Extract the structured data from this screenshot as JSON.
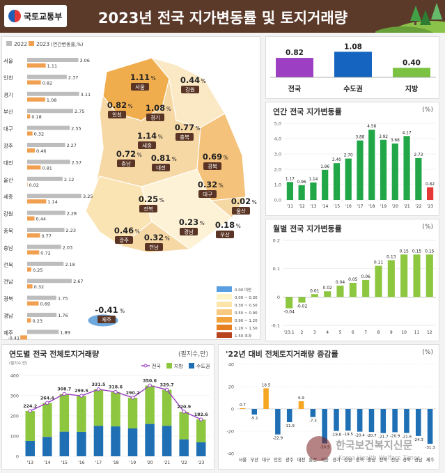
{
  "header": {
    "ministry": "국토교통부",
    "title": "2023년 전국 지가변동률 및 토지거래량"
  },
  "colors": {
    "header_bg": "#5b3a2a",
    "gray_2022": "#bdbdbd",
    "orange_2023": "#f0a050",
    "green": "#22a748",
    "red": "#e53935",
    "purple": "#9c3fc2",
    "blue": "#1565c0",
    "light_green": "#7cc242"
  },
  "legend_years": {
    "y2022": "2022",
    "y2023": "2023",
    "unit": "(연간변동률,%)"
  },
  "map": {
    "regions": [
      {
        "value": "1.11",
        "name": "서울"
      },
      {
        "value": "0.82",
        "name": "인천"
      },
      {
        "value": "1.08",
        "name": "경기"
      },
      {
        "value": "0.44",
        "name": "강원"
      },
      {
        "value": "1.14",
        "name": "세종"
      },
      {
        "value": "0.77",
        "name": "충북"
      },
      {
        "value": "0.72",
        "name": "충남"
      },
      {
        "value": "0.81",
        "name": "대전"
      },
      {
        "value": "0.69",
        "name": "경북"
      },
      {
        "value": "0.32",
        "name": "대구"
      },
      {
        "value": "0.02",
        "name": "울산"
      },
      {
        "value": "0.25",
        "name": "전북"
      },
      {
        "value": "0.23",
        "name": "경남"
      },
      {
        "value": "0.18",
        "name": "부산"
      },
      {
        "value": "0.46",
        "name": "광주"
      },
      {
        "value": "0.32",
        "name": "전남"
      },
      {
        "value": "-0.41",
        "name": "제주"
      }
    ],
    "legend": [
      {
        "label": "0.00 미만",
        "color": "#5aa0e0"
      },
      {
        "label": "0.00 ~ 0.30",
        "color": "#fff3c8"
      },
      {
        "label": "0.30 ~ 0.50",
        "color": "#fde4a8"
      },
      {
        "label": "0.50 ~ 0.90",
        "color": "#f8c97e"
      },
      {
        "label": "0.90 ~ 1.20",
        "color": "#f2a33c"
      },
      {
        "label": "1.20 ~ 1.50",
        "color": "#e67e22"
      },
      {
        "label": "1.50 초과",
        "color": "#b8431f"
      }
    ]
  },
  "chart_data": [
    {
      "type": "bar",
      "categories": [
        "서울",
        "인천",
        "경기",
        "부산",
        "대구",
        "광주",
        "대전",
        "울산",
        "세종",
        "강원",
        "충북",
        "충남",
        "전북",
        "전남",
        "경북",
        "경남",
        "제주"
      ],
      "series": [
        {
          "name": "2022",
          "values": [
            3.06,
            2.37,
            3.11,
            2.75,
            2.55,
            2.27,
            2.57,
            2.12,
            3.25,
            2.28,
            2.23,
            2.03,
            2.18,
            2.67,
            1.75,
            1.76,
            1.89
          ]
        },
        {
          "name": "2023",
          "values": [
            1.11,
            0.82,
            1.08,
            0.18,
            0.32,
            0.46,
            0.81,
            0.02,
            1.14,
            0.44,
            0.77,
            0.72,
            0.25,
            0.32,
            0.69,
            0.23,
            -0.41
          ]
        }
      ]
    },
    {
      "type": "bar",
      "categories": [
        "전국",
        "수도권",
        "지방"
      ],
      "values": [
        0.82,
        1.08,
        0.4
      ]
    },
    {
      "type": "bar",
      "title": "연간 전국 지가변동률",
      "unit": "(%)",
      "categories": [
        "'11",
        "'12",
        "'13",
        "'14",
        "'15",
        "'16",
        "'17",
        "'18",
        "'19",
        "'20",
        "'21",
        "'22",
        "'23"
      ],
      "values": [
        1.17,
        0.96,
        1.14,
        1.96,
        2.4,
        2.7,
        3.88,
        4.58,
        3.92,
        3.68,
        4.17,
        2.73,
        0.82
      ],
      "ylim": [
        0,
        5.0
      ],
      "yticks": [
        "0.0",
        "1.0",
        "2.0",
        "3.0",
        "4.0",
        "5.0"
      ]
    },
    {
      "type": "bar",
      "title": "월별 전국 지가변동률",
      "unit": "(%)",
      "categories": [
        "'23.1",
        "2",
        "3",
        "4",
        "5",
        "6",
        "7",
        "8",
        "9",
        "10",
        "11",
        "12"
      ],
      "values": [
        -0.04,
        -0.02,
        0.01,
        0.02,
        0.04,
        0.05,
        0.06,
        0.11,
        0.13,
        0.15,
        0.15,
        0.15
      ],
      "ylim": [
        -0.1,
        0.2
      ],
      "yticks": [
        "-0.1",
        "0",
        "0.1",
        "0.2"
      ]
    },
    {
      "type": "bar",
      "title": "연도별 전국 전체토지거래량",
      "unit": "(필지수,만)",
      "y_unit_label": "(필지수,만)",
      "categories": [
        "'13",
        "'14",
        "'15",
        "'16",
        "'17",
        "'18",
        "'19",
        "'20",
        "'21",
        "'22",
        "'23"
      ],
      "series": [
        {
          "name": "전국",
          "values": [
            224.2,
            264.4,
            308.7,
            299.5,
            331.5,
            318.6,
            290.2,
            350.6,
            329.7,
            220.9,
            182.6
          ]
        },
        {
          "name": "지방",
          "values": [
            148,
            168,
            186,
            178,
            180,
            170,
            152,
            190,
            178,
            136,
            113
          ]
        },
        {
          "name": "수도권",
          "values": [
            76,
            96,
            122,
            121,
            151,
            148,
            138,
            160,
            151,
            84,
            69
          ]
        }
      ],
      "ylim": [
        0,
        400
      ],
      "yticks": [
        "0",
        "100",
        "200",
        "300",
        "400"
      ]
    },
    {
      "type": "bar",
      "title": "'22년 대비 전체토지거래량 증감률",
      "unit": "(%)",
      "categories": [
        "서울",
        "부산",
        "대구",
        "인천",
        "광주",
        "대전",
        "울산",
        "세종",
        "경기",
        "강원",
        "충북",
        "충남",
        "전북",
        "전남",
        "경북",
        "경남",
        "제주"
      ],
      "values": [
        0.7,
        -5.1,
        18.5,
        -22.9,
        -11.9,
        6.9,
        -7.3,
        -30.9,
        -19.8,
        -19.5,
        -20.4,
        -20.7,
        -21.7,
        -20.9,
        -21.6,
        -24.3,
        -31.3
      ],
      "ylim": [
        -40,
        40
      ],
      "yticks": [
        "-40",
        "-20",
        "0",
        "20",
        "40"
      ]
    }
  ],
  "watermark": {
    "kr": "한국보건복지신문",
    "en": "Korea Health Welfare Times"
  }
}
